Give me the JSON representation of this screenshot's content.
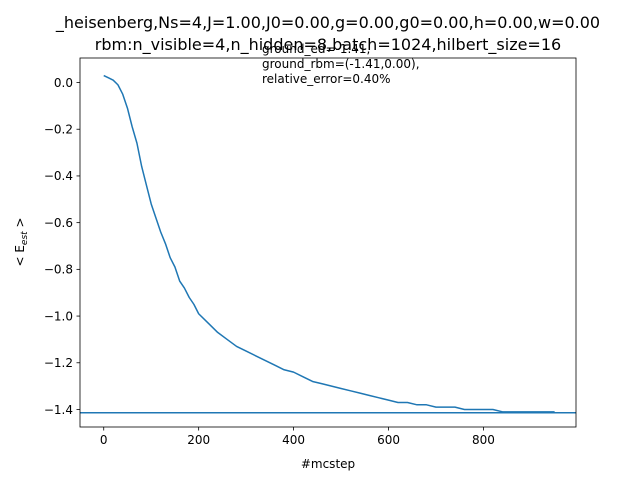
{
  "chart_data": {
    "type": "line",
    "title_line1": "_heisenberg,Ns=4,J=1.00,J0=0.00,g=0.00,g0=0.00,h=0.00,w=0.00",
    "title_line2": "rbm:n_visible=4,n_hidden=8,batch=1024,hilbert_size=16",
    "xlabel": "#mcstep",
    "ylabel_main": "< E",
    "ylabel_sub": "est",
    "ylabel_close": " >",
    "xlim": [
      -50,
      995
    ],
    "ylim": [
      -1.475,
      0.105
    ],
    "xticks": [
      0,
      200,
      400,
      600,
      800
    ],
    "yticks": [
      0.0,
      -0.2,
      -0.4,
      -0.6,
      -0.8,
      -1.0,
      -1.2,
      -1.4
    ],
    "ytick_labels": [
      "0.0",
      "−0.2",
      "−0.4",
      "−0.6",
      "−0.8",
      "−1.0",
      "−1.2",
      "−1.4"
    ],
    "series": [
      {
        "color": "#1f77b4",
        "x": [
          0,
          10,
          20,
          30,
          40,
          50,
          60,
          70,
          80,
          90,
          100,
          110,
          120,
          130,
          140,
          150,
          160,
          170,
          180,
          190,
          200,
          220,
          240,
          260,
          280,
          300,
          320,
          340,
          360,
          380,
          400,
          420,
          440,
          460,
          480,
          500,
          520,
          540,
          560,
          580,
          600,
          620,
          640,
          660,
          680,
          700,
          720,
          740,
          760,
          780,
          800,
          820,
          840,
          860,
          880,
          900,
          920,
          940,
          950
        ],
        "y": [
          0.03,
          0.02,
          0.01,
          -0.01,
          -0.05,
          -0.11,
          -0.19,
          -0.26,
          -0.36,
          -0.44,
          -0.52,
          -0.58,
          -0.64,
          -0.69,
          -0.75,
          -0.79,
          -0.85,
          -0.88,
          -0.92,
          -0.95,
          -0.99,
          -1.03,
          -1.07,
          -1.1,
          -1.13,
          -1.15,
          -1.17,
          -1.19,
          -1.21,
          -1.23,
          -1.24,
          -1.26,
          -1.28,
          -1.29,
          -1.3,
          -1.31,
          -1.32,
          -1.33,
          -1.34,
          -1.35,
          -1.36,
          -1.37,
          -1.37,
          -1.38,
          -1.38,
          -1.39,
          -1.39,
          -1.39,
          -1.4,
          -1.4,
          -1.4,
          -1.4,
          -1.41,
          -1.41,
          -1.41,
          -1.41,
          -1.41,
          -1.41,
          -1.41
        ]
      }
    ],
    "hline": {
      "y": -1.414,
      "color": "#1f77b4"
    },
    "annotation": {
      "line1": "ground_ed=-1.41,",
      "line2": "ground_rbm=(-1.41,0.00),",
      "line3": "relative_error=0.40%"
    }
  }
}
